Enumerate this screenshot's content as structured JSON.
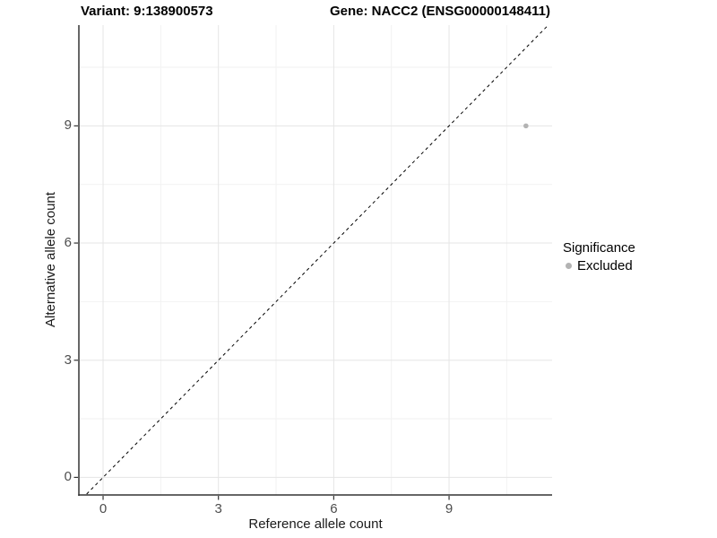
{
  "chart_data": {
    "type": "scatter",
    "titles": {
      "variant": "Variant: 9:138900573",
      "gene": "Gene: NACC2 (ENSG00000148411)"
    },
    "xlabel": "Reference allele count",
    "ylabel": "Alternative allele count",
    "xlim": [
      -0.63,
      11.68
    ],
    "ylim": [
      -0.45,
      11.58
    ],
    "x_major_ticks": [
      0,
      3,
      6,
      9
    ],
    "y_major_ticks": [
      0,
      3,
      6,
      9
    ],
    "x_minor_gridlines": [
      1.5,
      4.5,
      7.5,
      10.5
    ],
    "y_minor_gridlines": [
      1.5,
      4.5,
      7.5,
      10.5
    ],
    "grid": "major+minor",
    "identity_line": {
      "slope": 1,
      "intercept": 0,
      "style": "dashed",
      "color": "#000000"
    },
    "series": [
      {
        "name": "Excluded",
        "color": "#b3b3b3",
        "points": [
          {
            "x": 11,
            "y": 9
          }
        ]
      }
    ],
    "legend": {
      "title": "Significance",
      "position": "right",
      "items": [
        {
          "label": "Excluded",
          "color": "#b3b3b3"
        }
      ]
    }
  },
  "colors": {
    "background": "#ffffff",
    "axis_line": "#333333",
    "tick_mark": "#333333",
    "tick_label": "#4d4d4d",
    "grid_major": "#e5e5e5",
    "grid_minor": "#f2f2f2",
    "point": "#b3b3b3",
    "identity_line": "#000000",
    "title_text": "#000000"
  }
}
